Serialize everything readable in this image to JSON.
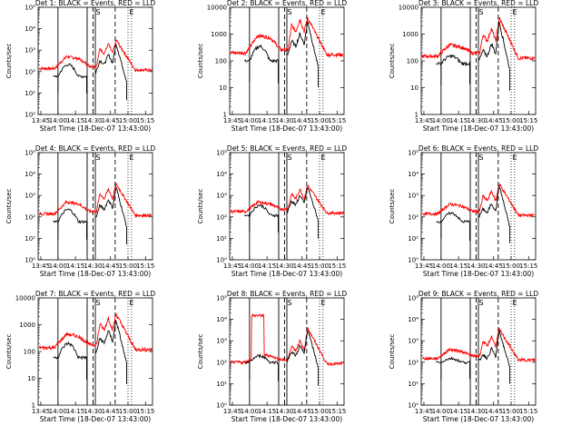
{
  "colors": {
    "events": "#000000",
    "lld": "#ff0000",
    "axis": "#000000",
    "background": "#ffffff"
  },
  "shared": {
    "xlabel": "Start Time (18-Dec-07 13:43:00)",
    "ylabel": "Counts/sec",
    "x_ticks": [
      "13:45",
      "14:00",
      "14:15",
      "14:30",
      "14:45",
      "15:00",
      "15:15"
    ],
    "x_tick_minutes": [
      13.755,
      14.0,
      14.25,
      14.5,
      14.75,
      15.0,
      15.25
    ],
    "x_range": [
      13.7167,
      15.35
    ],
    "solid_vlines": [
      14.0,
      14.4167,
      14.5333
    ],
    "dashed_vlines": [
      14.5,
      14.8167
    ],
    "dotted_vlines": [
      15.0,
      15.05
    ],
    "flag_markers": [
      {
        "label": "S",
        "x": 14.54
      },
      {
        "label": "E",
        "x": 15.02
      }
    ]
  },
  "chart_data": [
    {
      "type": "line",
      "panel": 1,
      "title": "Det 1: BLACK = Events, RED = LLD",
      "y_scale": "log",
      "ylim": [
        1,
        100000
      ],
      "y_tick_labels": [
        "10⁰",
        "10¹",
        "10²",
        "10³",
        "10⁴",
        "10⁵"
      ],
      "events": {
        "base": 60,
        "peak1": 210,
        "gap_start": 90,
        "peak2": 2000
      },
      "lld": {
        "base": 140,
        "peak1": 500,
        "peak2": 3000
      },
      "events_segments": "main"
    },
    {
      "type": "line",
      "panel": 2,
      "title": "Det 2: BLACK = Events, RED = LLD",
      "y_scale": "log",
      "ylim": [
        1,
        10000
      ],
      "y_tick_labels": [
        "1",
        "10",
        "100",
        "1000",
        "10000"
      ],
      "events": {
        "base": 100,
        "peak1": 350,
        "gap_start": 150,
        "peak2": 3000
      },
      "lld": {
        "base": 200,
        "peak1": 900,
        "peak2": 4000
      },
      "events_segments": "main"
    },
    {
      "type": "line",
      "panel": 3,
      "title": "Det 3: BLACK = Events, RED = LLD",
      "y_scale": "log",
      "ylim": [
        1,
        10000
      ],
      "y_tick_labels": [
        "1",
        "10",
        "100",
        "1000",
        "10000"
      ],
      "events": {
        "base": 80,
        "peak1": 150,
        "gap_start": 100,
        "peak2": 3000
      },
      "lld": {
        "base": 150,
        "peak1": 400,
        "peak2": 4000
      },
      "events_segments": "main"
    },
    {
      "type": "line",
      "panel": 4,
      "title": "Det 4: BLACK = Events, RED = LLD",
      "y_scale": "log",
      "ylim": [
        1,
        100000
      ],
      "y_tick_labels": [
        "10⁰",
        "10¹",
        "10²",
        "10³",
        "10⁴",
        "10⁵"
      ],
      "events": {
        "base": 60,
        "peak1": 220,
        "gap_start": 90,
        "peak2": 2500
      },
      "lld": {
        "base": 140,
        "peak1": 500,
        "peak2": 3500
      },
      "events_segments": "main"
    },
    {
      "type": "line",
      "panel": 5,
      "title": "Det 5: BLACK = Events, RED = LLD",
      "y_scale": "log",
      "ylim": [
        1,
        100000
      ],
      "y_tick_labels": [
        "10⁰",
        "10¹",
        "10²",
        "10³",
        "10⁴",
        "10⁵"
      ],
      "events": {
        "base": 120,
        "peak1": 350,
        "gap_start": 160,
        "peak2": 2500
      },
      "lld": {
        "base": 180,
        "peak1": 500,
        "peak2": 3000
      },
      "events_segments": "main"
    },
    {
      "type": "line",
      "panel": 6,
      "title": "Det 6: BLACK = Events, RED = LLD",
      "y_scale": "log",
      "ylim": [
        1,
        100000
      ],
      "y_tick_labels": [
        "10⁰",
        "10¹",
        "10²",
        "10³",
        "10⁴",
        "10⁵"
      ],
      "events": {
        "base": 60,
        "peak1": 150,
        "gap_start": 100,
        "peak2": 3000
      },
      "lld": {
        "base": 140,
        "peak1": 400,
        "peak2": 3500
      },
      "events_segments": "main"
    },
    {
      "type": "line",
      "panel": 7,
      "title": "Det 7: BLACK = Events, RED = LLD",
      "y_scale": "log",
      "ylim": [
        1,
        10000
      ],
      "y_tick_labels": [
        "1",
        "10",
        "100",
        "1000",
        "10000"
      ],
      "events": {
        "base": 60,
        "peak1": 200,
        "gap_start": 80,
        "peak2": 1500
      },
      "lld": {
        "base": 140,
        "peak1": 450,
        "peak2": 2500
      },
      "events_segments": "main"
    },
    {
      "type": "line",
      "panel": 8,
      "title": "Det 8: BLACK = Events, RED = LLD",
      "y_scale": "log",
      "ylim": [
        1,
        100000
      ],
      "y_tick_labels": [
        "10⁰",
        "10¹",
        "10²",
        "10³",
        "10⁴",
        "10⁵"
      ],
      "events": {
        "base": 100,
        "peak1": 200,
        "gap_start": 120,
        "peak2": 3500
      },
      "lld": {
        "base": 100,
        "peak1": 250,
        "peak2": 4000,
        "plateau": 15000
      },
      "events_segments": "main"
    },
    {
      "type": "line",
      "panel": 9,
      "title": "Det 9: BLACK = Events, RED = LLD",
      "y_scale": "log",
      "ylim": [
        1,
        100000
      ],
      "y_tick_labels": [
        "10⁰",
        "10¹",
        "10²",
        "10³",
        "10⁴",
        "10⁵"
      ],
      "events": {
        "base": 100,
        "peak1": 150,
        "gap_start": 110,
        "peak2": 3000
      },
      "lld": {
        "base": 150,
        "peak1": 400,
        "peak2": 3500
      },
      "events_segments": "main"
    }
  ]
}
